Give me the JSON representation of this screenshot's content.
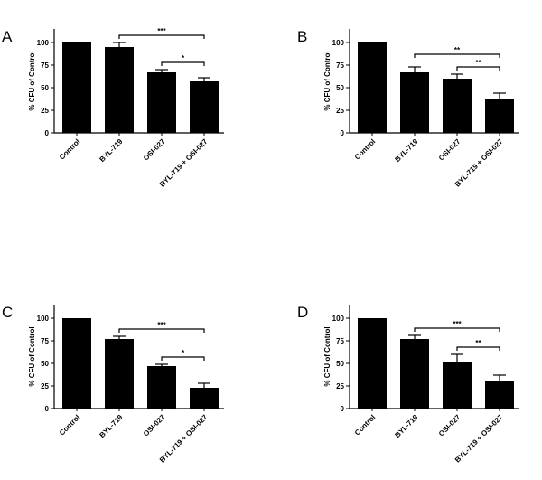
{
  "chart_data": [
    {
      "type": "bar",
      "panel": "A",
      "y_label": "% CFU of Control",
      "categories": [
        "Control",
        "BYL-719",
        "OSI-027",
        "BYL-719 + OSI-027"
      ],
      "values": [
        100,
        95,
        67,
        57
      ],
      "errors": [
        0,
        5,
        3,
        4
      ],
      "color": "#000000",
      "ylim": [
        0,
        115
      ],
      "yticks": [
        0,
        25,
        50,
        75,
        100
      ],
      "annotations": [
        {
          "text": "***",
          "from": 1,
          "to": 3
        },
        {
          "text": "*",
          "from": 2,
          "to": 3
        }
      ]
    },
    {
      "type": "bar",
      "panel": "B",
      "y_label": "% CFU of Control",
      "categories": [
        "Control",
        "BYL-719",
        "OSI-027",
        "BYL-719 + OSI-027"
      ],
      "values": [
        100,
        67,
        60,
        37
      ],
      "errors": [
        0,
        6,
        5,
        7
      ],
      "color": "#000000",
      "ylim": [
        0,
        115
      ],
      "yticks": [
        0,
        25,
        50,
        75,
        100
      ],
      "annotations": [
        {
          "text": "**",
          "from": 1,
          "to": 3
        },
        {
          "text": "**",
          "from": 2,
          "to": 3
        }
      ]
    },
    {
      "type": "bar",
      "panel": "C",
      "y_label": "% CFU of Control",
      "categories": [
        "Control",
        "BYL-719",
        "OSI-027",
        "BYL-719 + OSI-027"
      ],
      "values": [
        100,
        77,
        47,
        23
      ],
      "errors": [
        0,
        3,
        2,
        5
      ],
      "color": "#000000",
      "ylim": [
        0,
        115
      ],
      "yticks": [
        0,
        25,
        50,
        75,
        100
      ],
      "annotations": [
        {
          "text": "***",
          "from": 1,
          "to": 3
        },
        {
          "text": "*",
          "from": 2,
          "to": 3
        }
      ]
    },
    {
      "type": "bar",
      "panel": "D",
      "y_label": "% CFU of Control",
      "categories": [
        "Control",
        "BYL-719",
        "OSI-027",
        "BYL-719 + OSI-027"
      ],
      "values": [
        100,
        77,
        52,
        31
      ],
      "errors": [
        0,
        4,
        8,
        6
      ],
      "color": "#000000",
      "ylim": [
        0,
        115
      ],
      "yticks": [
        0,
        25,
        50,
        75,
        100
      ],
      "annotations": [
        {
          "text": "***",
          "from": 1,
          "to": 3
        },
        {
          "text": "**",
          "from": 2,
          "to": 3
        }
      ]
    }
  ]
}
